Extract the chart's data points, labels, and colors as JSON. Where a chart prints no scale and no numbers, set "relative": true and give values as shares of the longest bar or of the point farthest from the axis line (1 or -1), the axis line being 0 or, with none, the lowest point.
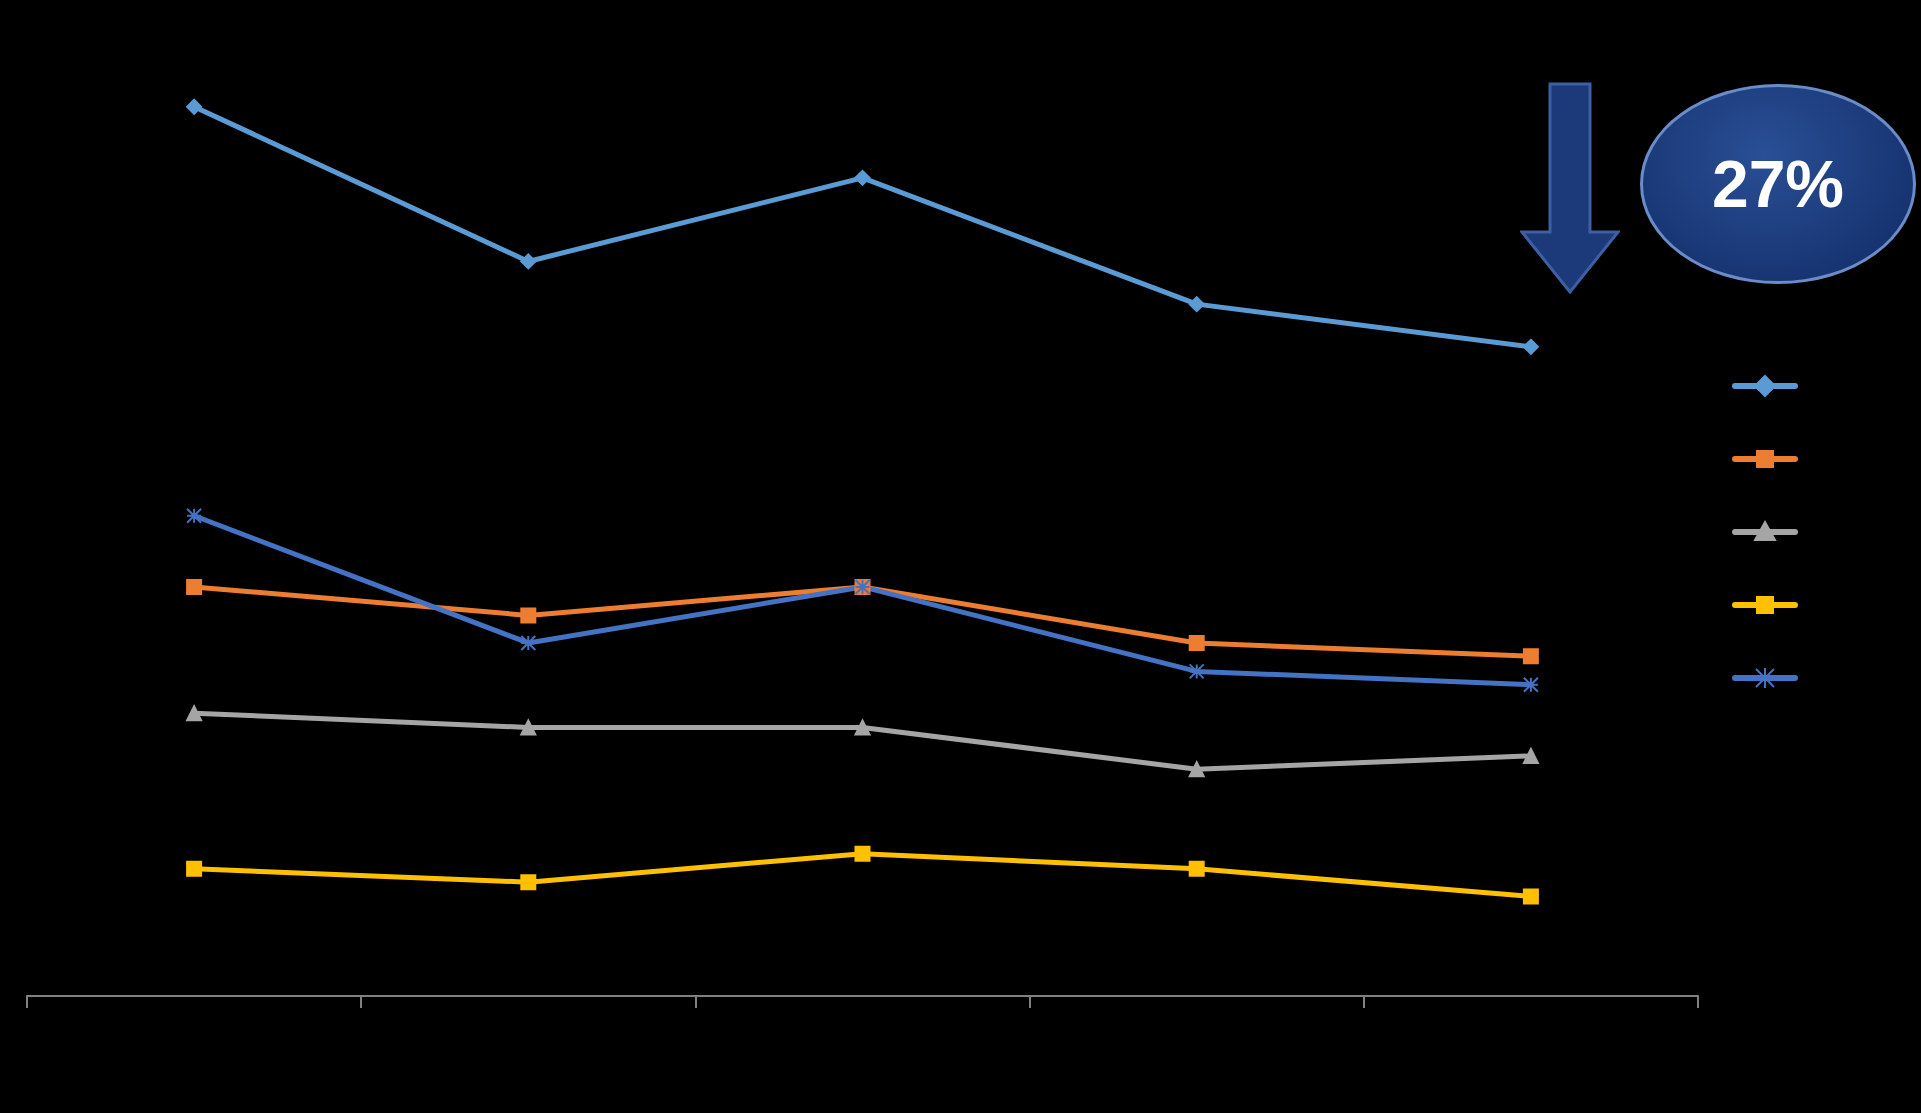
{
  "chart_data": {
    "type": "line",
    "relative": true,
    "categories": [
      null,
      null,
      null,
      null,
      null
    ],
    "grid": false,
    "annotations": [
      "27%"
    ],
    "series": [
      {
        "color": "#5b9bd5",
        "marker": "diamond",
        "values": [
          1,
          0.826,
          0.92,
          0.778,
          0.73
        ]
      },
      {
        "color": "#ed7d31",
        "marker": "square",
        "values": [
          0.46,
          0.428,
          0.46,
          0.397,
          0.382
        ]
      },
      {
        "color": "#a5a5a5",
        "marker": "triangle",
        "values": [
          0.318,
          0.302,
          0.302,
          0.255,
          0.27
        ]
      },
      {
        "color": "#ffc000",
        "marker": "square",
        "values": [
          0.143,
          0.128,
          0.16,
          0.143,
          0.112
        ]
      },
      {
        "color": "#4472c4",
        "marker": "cross",
        "values": [
          0.54,
          0.397,
          0.46,
          0.365,
          0.35
        ]
      }
    ]
  }
}
